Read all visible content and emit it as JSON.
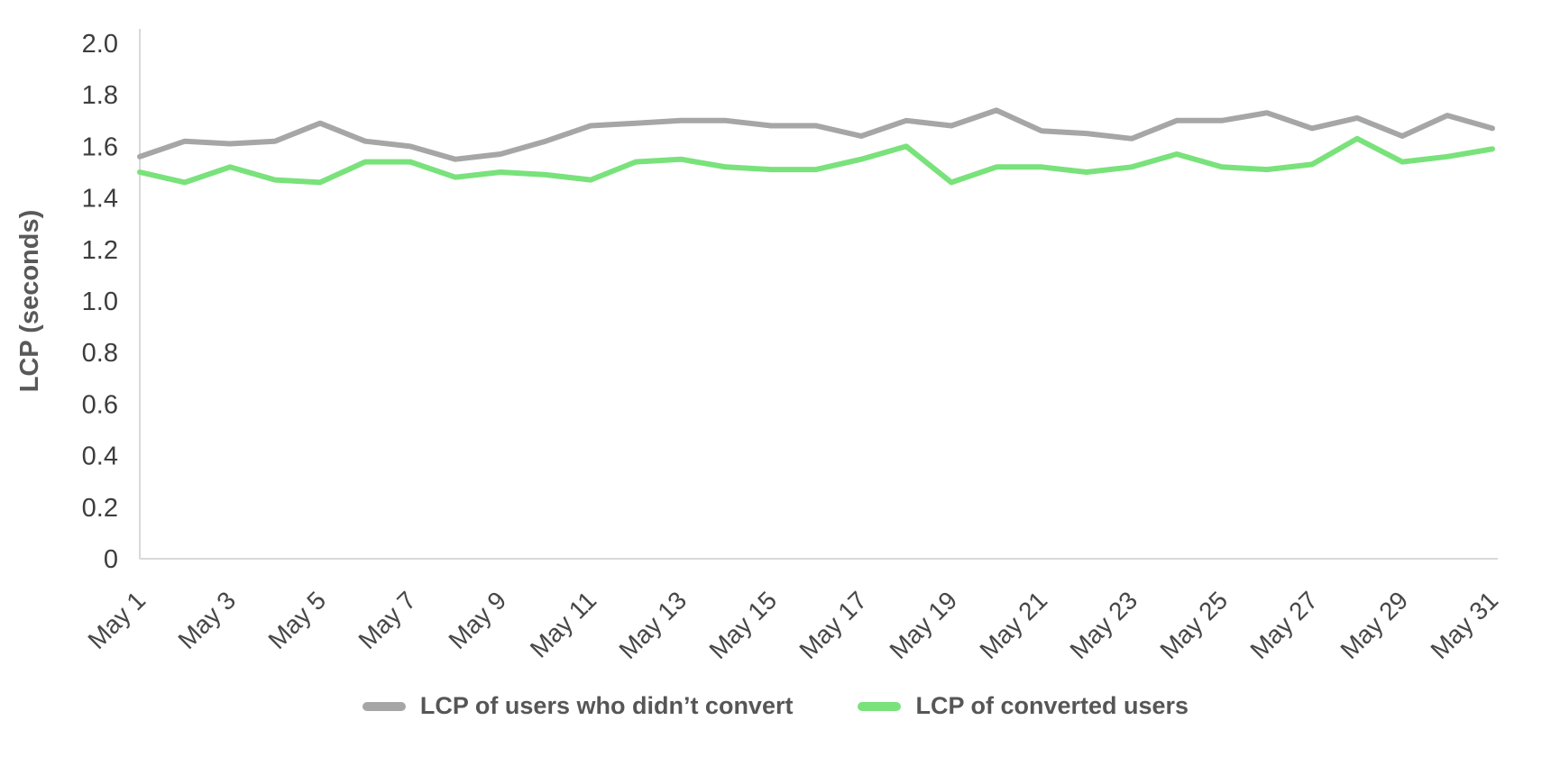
{
  "chart_data": {
    "type": "line",
    "title": "",
    "xlabel": "",
    "ylabel": "LCP (seconds)",
    "ylim": [
      0,
      2.0
    ],
    "yticks": [
      0,
      0.2,
      0.4,
      0.6,
      0.8,
      1.0,
      1.2,
      1.4,
      1.6,
      1.8,
      2.0
    ],
    "ytick_labels": [
      "0",
      "0.2",
      "0.4",
      "0.6",
      "0.8",
      "1.0",
      "1.2",
      "1.4",
      "1.6",
      "1.8",
      "2.0"
    ],
    "x": [
      "May 1",
      "May 2",
      "May 3",
      "May 4",
      "May 5",
      "May 6",
      "May 7",
      "May 8",
      "May 9",
      "May 10",
      "May 11",
      "May 12",
      "May 13",
      "May 14",
      "May 15",
      "May 16",
      "May 17",
      "May 18",
      "May 19",
      "May 20",
      "May 21",
      "May 22",
      "May 23",
      "May 24",
      "May 25",
      "May 26",
      "May 27",
      "May 28",
      "May 29",
      "May 30",
      "May 31"
    ],
    "x_tick_every": 2,
    "grid": false,
    "legend_position": "bottom",
    "axis_color": "#d9d9d9",
    "tick_color": "#474747",
    "label_color": "#595959",
    "series": [
      {
        "name": "LCP of users who didn’t convert",
        "color": "#a6a6a6",
        "values": [
          1.56,
          1.62,
          1.61,
          1.62,
          1.69,
          1.62,
          1.6,
          1.55,
          1.57,
          1.62,
          1.68,
          1.69,
          1.7,
          1.7,
          1.68,
          1.68,
          1.64,
          1.7,
          1.68,
          1.74,
          1.66,
          1.65,
          1.63,
          1.7,
          1.7,
          1.73,
          1.67,
          1.71,
          1.64,
          1.72,
          1.67
        ]
      },
      {
        "name": "LCP of converted users",
        "color": "#79e27b",
        "values": [
          1.5,
          1.46,
          1.52,
          1.47,
          1.46,
          1.54,
          1.54,
          1.48,
          1.5,
          1.49,
          1.47,
          1.54,
          1.55,
          1.52,
          1.51,
          1.51,
          1.55,
          1.6,
          1.46,
          1.52,
          1.52,
          1.5,
          1.52,
          1.57,
          1.52,
          1.51,
          1.53,
          1.63,
          1.54,
          1.56,
          1.59
        ]
      }
    ]
  }
}
